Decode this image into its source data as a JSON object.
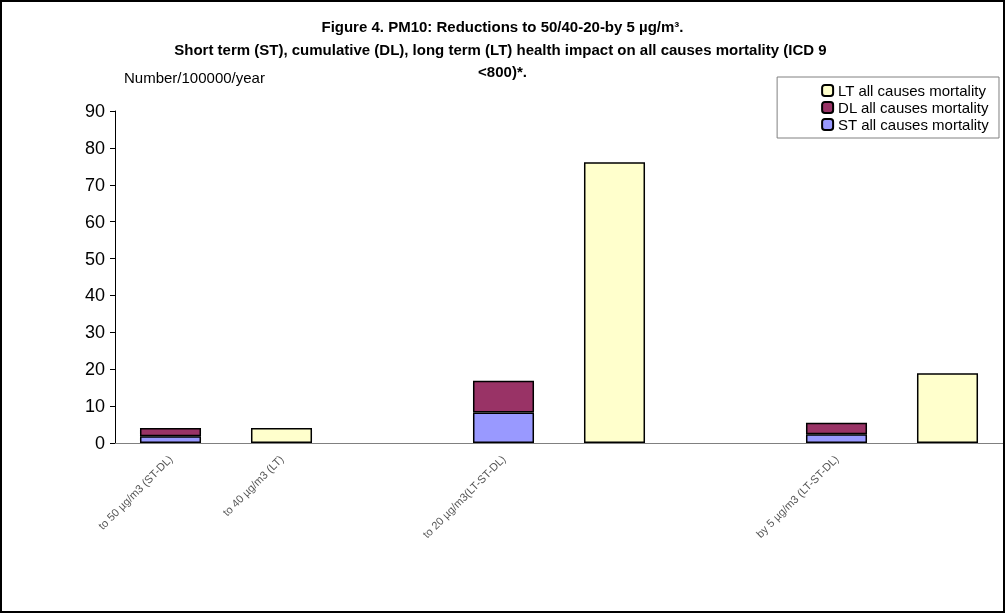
{
  "chart_data": {
    "type": "bar",
    "title": "Figure 4. PM10: Reductions to 50/40-20-by 5 µg/m³.",
    "subtitle": "Short term (ST), cumulative (DL), long term (LT) health impact on all causes mortality (ICD 9 <800)*.",
    "ylabel": "Number/100000/year",
    "categories": [
      "to 50 µg/m3 (ST-DL)",
      "to 40 µg/m3 (LT)",
      null,
      "to 20 µg/m3(LT-ST-DL)",
      null,
      null,
      "by 5 µg/m3 (LT-ST-DL)",
      null
    ],
    "series": [
      {
        "name": "ST all causes mortality",
        "color": "#9999ff",
        "values": [
          1.8,
          null,
          null,
          8.3,
          null,
          null,
          2.4,
          null
        ]
      },
      {
        "name": "DL all causes mortality",
        "color": "#993366",
        "values": [
          2.3,
          null,
          null,
          8.6,
          null,
          null,
          3.1,
          null
        ]
      },
      {
        "name": "LT all causes mortality",
        "color": "#ffffcc",
        "values": [
          null,
          4.1,
          null,
          null,
          76.1,
          null,
          null,
          18.9
        ]
      }
    ],
    "stacked": true,
    "ylim": [
      0,
      90
    ],
    "yticks": [
      0,
      10,
      20,
      30,
      40,
      50,
      60,
      70,
      80,
      90
    ],
    "grid": false,
    "legend": "top right"
  }
}
